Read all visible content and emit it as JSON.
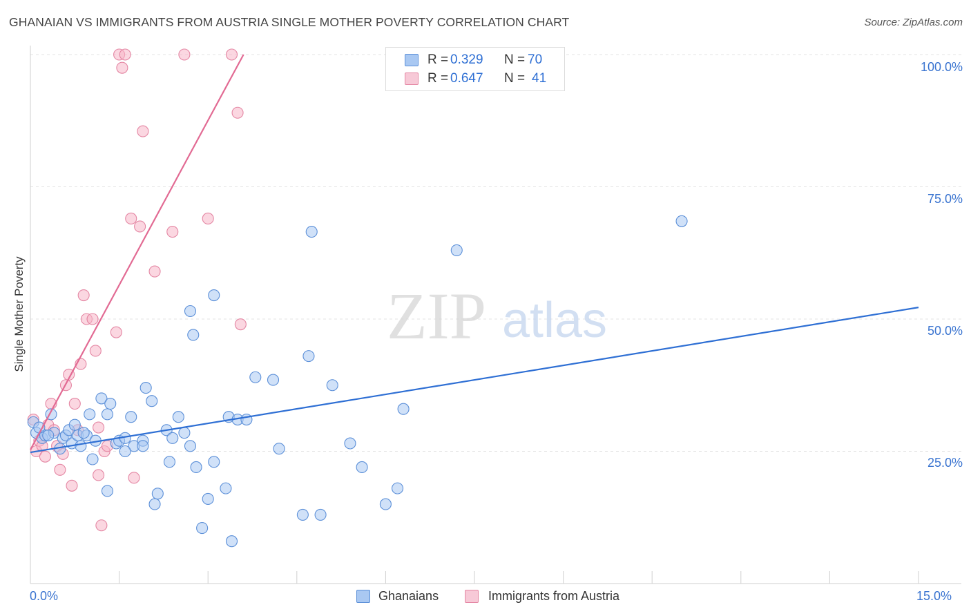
{
  "title": "GHANAIAN VS IMMIGRANTS FROM AUSTRIA SINGLE MOTHER POVERTY CORRELATION CHART",
  "source": "Source: ZipAtlas.com",
  "watermark": {
    "zip": "ZIP",
    "atlas": "atlas"
  },
  "legend": {
    "rows": [
      {
        "r_label": "R =",
        "r_value": "0.329",
        "n_label": "N =",
        "n_value": "70"
      },
      {
        "r_label": "R =",
        "r_value": "0.647",
        "n_label": "N =",
        "n_value": "41"
      }
    ]
  },
  "bottom_legend": [
    "Ghanaians",
    "Immigrants from Austria"
  ],
  "x_tick_labels": [
    "0.0%",
    "15.0%"
  ],
  "y_tick_labels": [
    "100.0%",
    "75.0%",
    "50.0%",
    "25.0%"
  ],
  "colors": {
    "blue_fill": "#a9c8f2",
    "blue_stroke": "#5b8fd8",
    "blue_line": "#2e6fd4",
    "pink_fill": "#f7b7c9",
    "pink_stroke": "#e486a3",
    "pink_line": "#e26a93",
    "tick_text": "#3a74d0",
    "grid": "#e3e3e3"
  },
  "chart_data": {
    "type": "scatter",
    "title": "GHANAIAN VS IMMIGRANTS FROM AUSTRIA SINGLE MOTHER POVERTY CORRELATION CHART",
    "xlabel": "",
    "ylabel": "Single Mother Poverty",
    "xlim": [
      0,
      15
    ],
    "ylim": [
      0,
      100
    ],
    "x_unit": "%",
    "y_unit": "%",
    "grid": true,
    "legend_position": "top-center",
    "series": [
      {
        "name": "Ghanaians",
        "r": 0.329,
        "n": 70,
        "trend": {
          "x": [
            0,
            15
          ],
          "y": [
            24.8,
            52.2
          ]
        },
        "points": [
          [
            0.05,
            30.5
          ],
          [
            0.1,
            28.5
          ],
          [
            0.2,
            27.5
          ],
          [
            0.25,
            28.0
          ],
          [
            0.35,
            32.0
          ],
          [
            0.4,
            28.5
          ],
          [
            0.5,
            25.5
          ],
          [
            0.55,
            27.5
          ],
          [
            0.6,
            28.0
          ],
          [
            0.65,
            29.0
          ],
          [
            0.7,
            26.5
          ],
          [
            0.75,
            30.0
          ],
          [
            0.8,
            28.0
          ],
          [
            0.85,
            26.0
          ],
          [
            0.95,
            28.0
          ],
          [
            1.0,
            32.0
          ],
          [
            1.05,
            23.5
          ],
          [
            1.1,
            27.0
          ],
          [
            1.2,
            35.0
          ],
          [
            1.3,
            32.0
          ],
          [
            1.35,
            34.0
          ],
          [
            1.45,
            26.5
          ],
          [
            1.5,
            27.0
          ],
          [
            1.6,
            27.5
          ],
          [
            1.7,
            31.5
          ],
          [
            1.75,
            26.0
          ],
          [
            1.9,
            27.0
          ],
          [
            1.95,
            37.0
          ],
          [
            2.05,
            34.5
          ],
          [
            2.15,
            17.0
          ],
          [
            2.3,
            29.0
          ],
          [
            2.4,
            27.5
          ],
          [
            2.5,
            31.5
          ],
          [
            2.6,
            28.5
          ],
          [
            2.7,
            26.0
          ],
          [
            2.8,
            22.0
          ],
          [
            2.9,
            10.5
          ],
          [
            3.0,
            16.0
          ],
          [
            3.1,
            23.0
          ],
          [
            3.3,
            18.0
          ],
          [
            3.35,
            31.5
          ],
          [
            3.5,
            31.0
          ],
          [
            3.8,
            39.0
          ],
          [
            4.1,
            38.5
          ],
          [
            4.2,
            25.5
          ],
          [
            4.6,
            13.0
          ],
          [
            4.7,
            43.0
          ],
          [
            4.9,
            13.0
          ],
          [
            5.1,
            37.5
          ],
          [
            5.4,
            26.5
          ],
          [
            5.6,
            22.0
          ],
          [
            6.0,
            15.0
          ],
          [
            6.2,
            18.0
          ],
          [
            6.3,
            33.0
          ],
          [
            7.2,
            63.0
          ],
          [
            4.75,
            66.5
          ],
          [
            3.1,
            54.5
          ],
          [
            2.7,
            51.5
          ],
          [
            2.75,
            47.0
          ],
          [
            1.3,
            17.5
          ],
          [
            1.6,
            25.0
          ],
          [
            2.35,
            23.0
          ],
          [
            3.4,
            8.0
          ],
          [
            0.3,
            28.0
          ],
          [
            0.9,
            28.5
          ],
          [
            1.9,
            26.0
          ],
          [
            2.1,
            15.0
          ],
          [
            3.65,
            31.0
          ],
          [
            11.0,
            68.5
          ],
          [
            0.15,
            29.5
          ]
        ]
      },
      {
        "name": "Immigrants from Austria",
        "r": 0.647,
        "n": 41,
        "trend": {
          "x": [
            0,
            3.6
          ],
          "y": [
            25.3,
            100
          ]
        },
        "points": [
          [
            0.05,
            31.0
          ],
          [
            0.1,
            25.0
          ],
          [
            0.15,
            27.0
          ],
          [
            0.2,
            26.0
          ],
          [
            0.25,
            24.0
          ],
          [
            0.3,
            30.0
          ],
          [
            0.35,
            34.0
          ],
          [
            0.4,
            29.0
          ],
          [
            0.45,
            26.0
          ],
          [
            0.5,
            21.5
          ],
          [
            0.55,
            24.5
          ],
          [
            0.6,
            37.5
          ],
          [
            0.65,
            39.5
          ],
          [
            0.7,
            18.5
          ],
          [
            0.75,
            34.0
          ],
          [
            0.8,
            29.0
          ],
          [
            0.85,
            41.5
          ],
          [
            0.9,
            54.5
          ],
          [
            0.95,
            50.0
          ],
          [
            1.05,
            50.0
          ],
          [
            1.1,
            44.0
          ],
          [
            1.15,
            20.5
          ],
          [
            1.2,
            11.0
          ],
          [
            1.25,
            25.0
          ],
          [
            1.3,
            26.0
          ],
          [
            1.45,
            47.5
          ],
          [
            1.5,
            100.0
          ],
          [
            1.55,
            97.5
          ],
          [
            1.6,
            100.0
          ],
          [
            1.7,
            69.0
          ],
          [
            1.75,
            20.0
          ],
          [
            1.85,
            67.5
          ],
          [
            1.9,
            85.5
          ],
          [
            2.1,
            59.0
          ],
          [
            2.4,
            66.5
          ],
          [
            2.6,
            100.0
          ],
          [
            3.0,
            69.0
          ],
          [
            3.4,
            100.0
          ],
          [
            3.5,
            89.0
          ],
          [
            3.55,
            49.0
          ],
          [
            1.15,
            29.5
          ]
        ]
      }
    ]
  }
}
